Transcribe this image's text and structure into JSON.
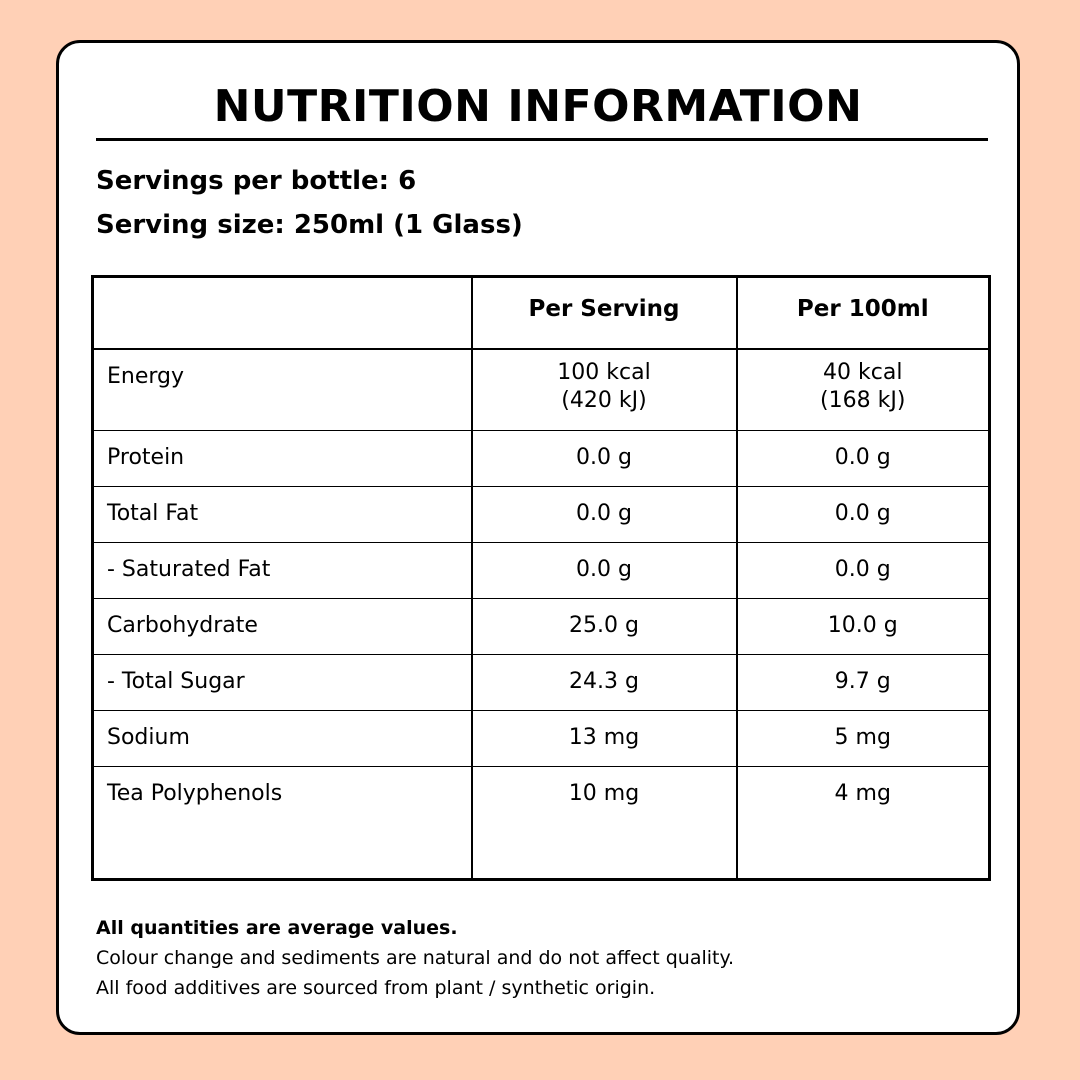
{
  "title": "NUTRITION INFORMATION",
  "servings_per_bottle": "Servings per bottle: 6",
  "serving_size": "Serving size: 250ml (1 Glass)",
  "colors": {
    "background": "#FFD0B6",
    "card": "#FFFFFF",
    "ink": "#000000"
  },
  "table": {
    "headers": [
      "",
      "Per Serving",
      "Per 100ml"
    ],
    "rows": [
      {
        "nutrient": "Energy",
        "per_serving": [
          "100 kcal",
          "(420 kJ)"
        ],
        "per_100ml": [
          "40 kcal",
          "(168 kJ)"
        ]
      },
      {
        "nutrient": "Protein",
        "per_serving": "0.0 g",
        "per_100ml": "0.0 g"
      },
      {
        "nutrient": "Total Fat",
        "per_serving": "0.0 g",
        "per_100ml": "0.0 g"
      },
      {
        "nutrient": "- Saturated Fat",
        "per_serving": "0.0 g",
        "per_100ml": "0.0 g"
      },
      {
        "nutrient": "Carbohydrate",
        "per_serving": "25.0 g",
        "per_100ml": "10.0 g"
      },
      {
        "nutrient": "- Total Sugar",
        "per_serving": "24.3 g",
        "per_100ml": "9.7 g"
      },
      {
        "nutrient": "Sodium",
        "per_serving": "13 mg",
        "per_100ml": "5 mg"
      },
      {
        "nutrient": "Tea Polyphenols",
        "per_serving": "10 mg",
        "per_100ml": "4 mg"
      }
    ]
  },
  "footnotes": [
    "All quantities are average values.",
    "Colour change and sediments are natural and do not affect quality.",
    "All food additives are sourced from plant / synthetic origin."
  ]
}
